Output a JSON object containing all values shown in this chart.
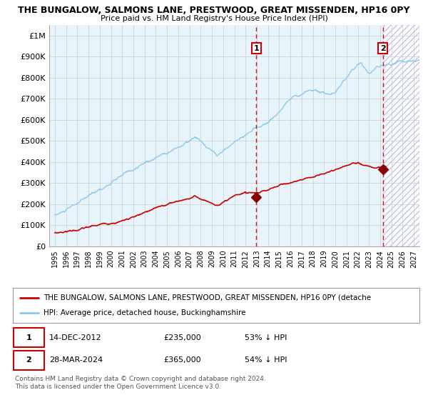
{
  "title": "THE BUNGALOW, SALMONS LANE, PRESTWOOD, GREAT MISSENDEN, HP16 0PY",
  "subtitle": "Price paid vs. HM Land Registry's House Price Index (HPI)",
  "hpi_color": "#8fc8e8",
  "price_color": "#cc0000",
  "hpi_bg_color": "#e8f4fc",
  "marker_color": "#880000",
  "dashed_line_color": "#cc0000",
  "grid_color": "#cccccc",
  "purchase1_date_num": 2012.96,
  "purchase1_price": 235000,
  "purchase1_label": "14-DEC-2012",
  "purchase2_date_num": 2024.24,
  "purchase2_price": 365000,
  "purchase2_label": "28-MAR-2024",
  "legend_label_price": "THE BUNGALOW, SALMONS LANE, PRESTWOOD, GREAT MISSENDEN, HP16 0PY (detache",
  "legend_label_hpi": "HPI: Average price, detached house, Buckinghamshire",
  "footer": "Contains HM Land Registry data © Crown copyright and database right 2024.\nThis data is licensed under the Open Government Licence v3.0.",
  "ylim": [
    0,
    1050000
  ],
  "xlim_start": 1994.5,
  "xlim_end": 2027.5,
  "future_start": 2024.24,
  "ylabel_ticks": [
    0,
    100000,
    200000,
    300000,
    400000,
    500000,
    600000,
    700000,
    800000,
    900000,
    1000000
  ],
  "xticks": [
    1995,
    1996,
    1997,
    1998,
    1999,
    2000,
    2001,
    2002,
    2003,
    2004,
    2005,
    2006,
    2007,
    2008,
    2009,
    2010,
    2011,
    2012,
    2013,
    2014,
    2015,
    2016,
    2017,
    2018,
    2019,
    2020,
    2021,
    2022,
    2023,
    2024,
    2025,
    2026,
    2027
  ]
}
